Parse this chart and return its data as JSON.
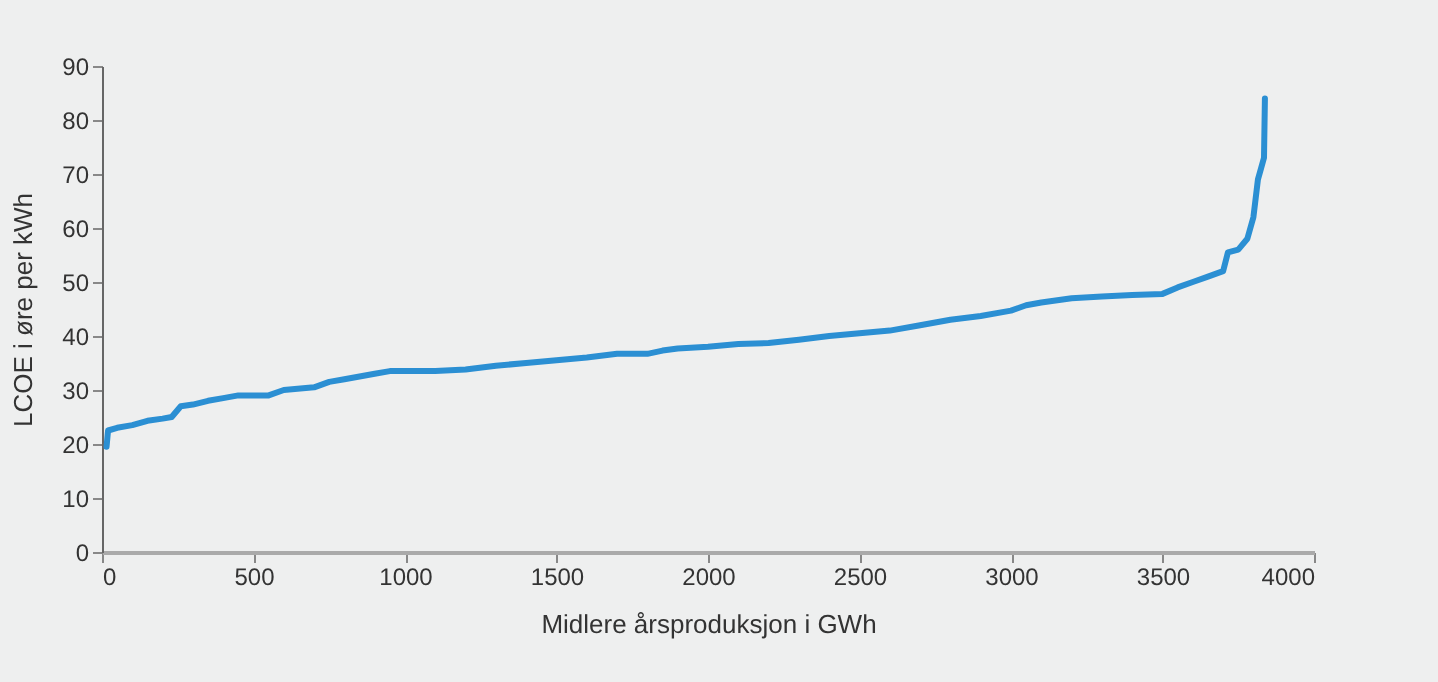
{
  "chart_data": {
    "type": "line",
    "xlabel": "Midlere årsproduksjon i GWh",
    "ylabel": "LCOE i øre per kWh",
    "xlim": [
      0,
      4000
    ],
    "xticks": [
      0,
      500,
      1000,
      1500,
      2000,
      2500,
      3000,
      3500,
      4000
    ],
    "ylim": [
      0,
      90
    ],
    "yticks": [
      0,
      10,
      20,
      30,
      40,
      50,
      60,
      70,
      80,
      90
    ],
    "grid": false,
    "series": [
      {
        "color": "#2b8fd3",
        "x": [
          15,
          20,
          50,
          100,
          150,
          200,
          230,
          260,
          300,
          350,
          400,
          450,
          550,
          600,
          700,
          750,
          800,
          900,
          950,
          1100,
          1200,
          1300,
          1400,
          1500,
          1600,
          1700,
          1800,
          1850,
          1900,
          2000,
          2100,
          2200,
          2300,
          2400,
          2500,
          2600,
          2700,
          2800,
          2900,
          3000,
          3050,
          3100,
          3200,
          3300,
          3400,
          3500,
          3550,
          3600,
          3650,
          3700,
          3716,
          3750,
          3780,
          3800,
          3815,
          3825,
          3835,
          3838
        ],
        "values": [
          19.5,
          22.5,
          23,
          23.5,
          24.3,
          24.7,
          25,
          27,
          27.3,
          28,
          28.5,
          29,
          29,
          30,
          30.5,
          31.5,
          32,
          33,
          33.5,
          33.5,
          33.8,
          34.5,
          35,
          35.5,
          36,
          36.7,
          36.7,
          37.3,
          37.7,
          38,
          38.5,
          38.7,
          39.3,
          40,
          40.5,
          41,
          42,
          43,
          43.7,
          44.7,
          45.7,
          46.2,
          47,
          47.3,
          47.6,
          47.8,
          49,
          50,
          51,
          52,
          55.5,
          56,
          58,
          62,
          69,
          71,
          73,
          84
        ]
      }
    ]
  }
}
